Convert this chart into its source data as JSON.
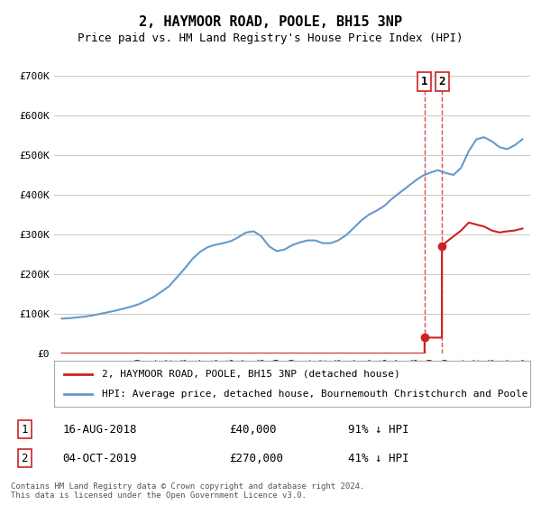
{
  "title": "2, HAYMOOR ROAD, POOLE, BH15 3NP",
  "subtitle": "Price paid vs. HM Land Registry's House Price Index (HPI)",
  "xlabel": "",
  "ylabel": "",
  "ylim": [
    0,
    700000
  ],
  "yticks": [
    0,
    100000,
    200000,
    300000,
    400000,
    500000,
    600000,
    700000
  ],
  "ytick_labels": [
    "£0",
    "£100K",
    "£200K",
    "£300K",
    "£400K",
    "£500K",
    "£600K",
    "£700K"
  ],
  "xlim_start": 1994.5,
  "xlim_end": 2025.5,
  "hpi_color": "#6699cc",
  "property_color": "#cc2222",
  "background_color": "#ffffff",
  "grid_color": "#cccccc",
  "legend_label_property": "2, HAYMOOR ROAD, POOLE, BH15 3NP (detached house)",
  "legend_label_hpi": "HPI: Average price, detached house, Bournemouth Christchurch and Poole",
  "sale1_date": "16-AUG-2018",
  "sale1_price": 40000,
  "sale1_pct": "91% ↓ HPI",
  "sale1_year": 2018.62,
  "sale2_date": "04-OCT-2019",
  "sale2_price": 270000,
  "sale2_pct": "41% ↓ HPI",
  "sale2_year": 2019.75,
  "copyright_text": "Contains HM Land Registry data © Crown copyright and database right 2024.\nThis data is licensed under the Open Government Licence v3.0.",
  "hpi_years": [
    1995,
    1995.5,
    1996,
    1996.5,
    1997,
    1997.5,
    1998,
    1998.5,
    1999,
    1999.5,
    2000,
    2000.5,
    2001,
    2001.5,
    2002,
    2002.5,
    2003,
    2003.5,
    2004,
    2004.5,
    2005,
    2005.5,
    2006,
    2006.5,
    2007,
    2007.5,
    2008,
    2008.5,
    2009,
    2009.5,
    2010,
    2010.5,
    2011,
    2011.5,
    2012,
    2012.5,
    2013,
    2013.5,
    2014,
    2014.5,
    2015,
    2015.5,
    2016,
    2016.5,
    2017,
    2017.5,
    2018,
    2018.5,
    2019,
    2019.5,
    2020,
    2020.5,
    2021,
    2021.5,
    2022,
    2022.5,
    2023,
    2023.5,
    2024,
    2024.5,
    2025
  ],
  "hpi_values": [
    88000,
    89000,
    91000,
    93000,
    96000,
    100000,
    104000,
    108000,
    113000,
    118000,
    124000,
    133000,
    143000,
    156000,
    170000,
    192000,
    214000,
    238000,
    256000,
    268000,
    274000,
    278000,
    283000,
    293000,
    305000,
    308000,
    295000,
    270000,
    258000,
    262000,
    273000,
    280000,
    285000,
    285000,
    278000,
    278000,
    285000,
    298000,
    316000,
    335000,
    350000,
    360000,
    372000,
    390000,
    405000,
    420000,
    435000,
    448000,
    456000,
    462000,
    455000,
    450000,
    468000,
    510000,
    540000,
    545000,
    535000,
    520000,
    515000,
    525000,
    540000
  ],
  "property_years_pre1": [
    1995,
    2018.62
  ],
  "property_values_pre1": [
    0,
    0
  ],
  "property_years_sale1_to_sale2": [
    2018.62,
    2019.75
  ],
  "property_values_sale1_to_sale2": [
    40000,
    40000
  ],
  "property_years_post2": [
    2019.75,
    2025
  ],
  "property_values_post2": [
    270000,
    270000
  ],
  "property_segment2_years": [
    2019.75,
    2020,
    2020.5,
    2021,
    2021.5,
    2022,
    2022.5,
    2023,
    2023.5,
    2024,
    2024.5,
    2025
  ],
  "property_segment2_values": [
    270000,
    280000,
    295000,
    310000,
    330000,
    325000,
    320000,
    310000,
    305000,
    308000,
    310000,
    315000
  ]
}
